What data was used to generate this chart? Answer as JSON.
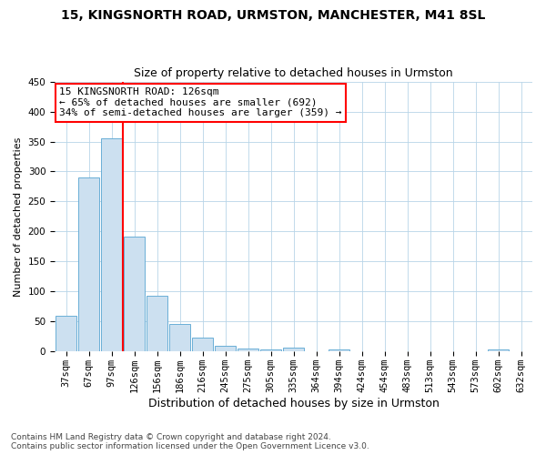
{
  "title": "15, KINGSNORTH ROAD, URMSTON, MANCHESTER, M41 8SL",
  "subtitle": "Size of property relative to detached houses in Urmston",
  "xlabel": "Distribution of detached houses by size in Urmston",
  "ylabel": "Number of detached properties",
  "categories": [
    "37sqm",
    "67sqm",
    "97sqm",
    "126sqm",
    "156sqm",
    "186sqm",
    "216sqm",
    "245sqm",
    "275sqm",
    "305sqm",
    "335sqm",
    "364sqm",
    "394sqm",
    "424sqm",
    "454sqm",
    "483sqm",
    "513sqm",
    "543sqm",
    "573sqm",
    "602sqm",
    "632sqm"
  ],
  "values": [
    59,
    290,
    355,
    191,
    93,
    46,
    23,
    9,
    5,
    4,
    6,
    1,
    3,
    1,
    0,
    0,
    0,
    0,
    0,
    4,
    0
  ],
  "bar_color": "#cce0f0",
  "bar_edgecolor": "#6aaed6",
  "vline_index": 3,
  "vline_color": "red",
  "annotation_text": "15 KINGSNORTH ROAD: 126sqm\n← 65% of detached houses are smaller (692)\n34% of semi-detached houses are larger (359) →",
  "annotation_box_color": "white",
  "annotation_box_edgecolor": "red",
  "ylim": [
    0,
    450
  ],
  "yticks": [
    0,
    50,
    100,
    150,
    200,
    250,
    300,
    350,
    400,
    450
  ],
  "footnote": "Contains HM Land Registry data © Crown copyright and database right 2024.\nContains public sector information licensed under the Open Government Licence v3.0.",
  "title_fontsize": 10,
  "subtitle_fontsize": 9,
  "xlabel_fontsize": 9,
  "ylabel_fontsize": 8,
  "tick_fontsize": 7.5,
  "annotation_fontsize": 8,
  "footnote_fontsize": 6.5
}
